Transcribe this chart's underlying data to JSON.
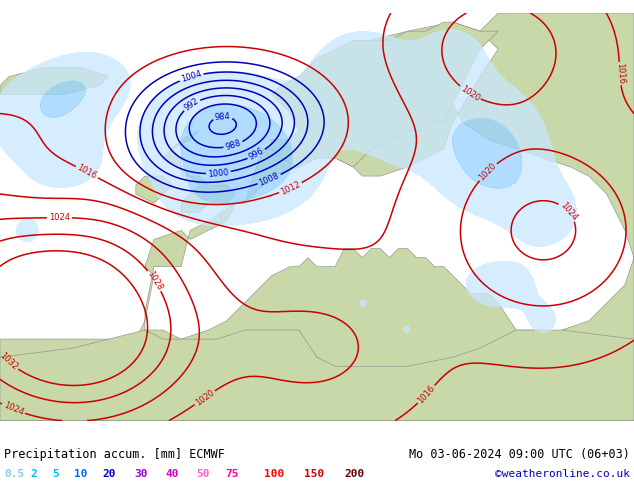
{
  "title_left": "Precipitation accum. [mm] ECMWF",
  "title_right": "Mo 03-06-2024 09:00 UTC (06+03)",
  "credit": "©weatheronline.co.uk",
  "legend_values": [
    "0.5",
    "2",
    "5",
    "10",
    "20",
    "30",
    "40",
    "50",
    "75",
    "100",
    "150",
    "200"
  ],
  "legend_text_colors": [
    "#87CEEB",
    "#00BFFF",
    "#00BFFF",
    "#0066FF",
    "#0000CC",
    "#9900CC",
    "#CC00CC",
    "#FF66CC",
    "#FF0099",
    "#FF0000",
    "#CC0000",
    "#660000"
  ],
  "figsize": [
    6.34,
    4.9
  ],
  "dpi": 100,
  "map_bg": "#b8cfe0",
  "land_light": "#c8d8a8",
  "land_dark": "#a8c090",
  "pressure_low_color": "#0000bb",
  "pressure_high_color": "#cc0000",
  "bottom_bg": "#ffffff",
  "sea_color": "#b0c4d8",
  "precip_colors": [
    "#c8e8ff",
    "#96d2ff",
    "#64b4ff",
    "#3296ff",
    "#0064ff",
    "#9664ff",
    "#cc64ff",
    "#ff96cc",
    "#ff3399",
    "#ff0000",
    "#cc0000",
    "#880000"
  ]
}
